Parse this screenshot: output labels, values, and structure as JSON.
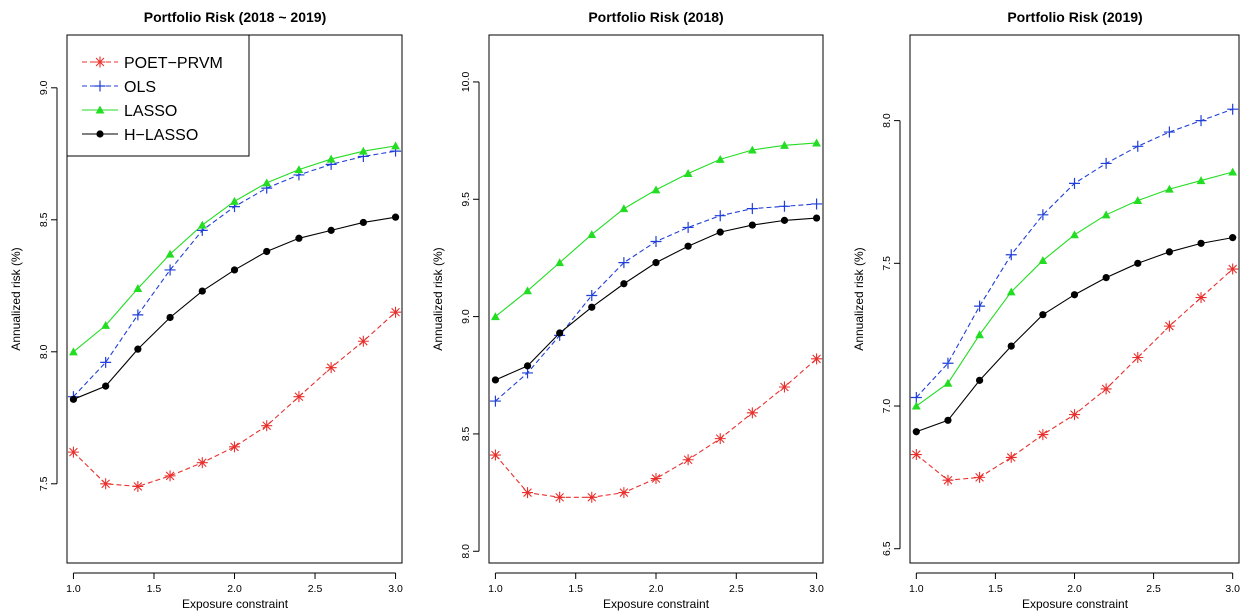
{
  "colors": {
    "POET-PRVM": "#e8302d",
    "OLS": "#1f3fd8",
    "LASSO": "#22dd22",
    "H-LASSO": "#000000"
  },
  "legend": {
    "position": "top-left of first panel",
    "entries": [
      "POET−PRVM",
      "OLS",
      "LASSO",
      "H−LASSO"
    ]
  },
  "chart_data": [
    {
      "type": "line",
      "title": "Portfolio Risk (2018 ~ 2019)",
      "xlabel": "Exposure constraint",
      "ylabel": "Annualized risk (%)",
      "xlim": [
        0.96,
        3.04
      ],
      "ylim": [
        7.2,
        9.2
      ],
      "xticks": [
        1.0,
        1.5,
        2.0,
        2.5,
        3.0
      ],
      "xtick_labels": [
        "1.0",
        "1.5",
        "2.0",
        "2.5",
        "3.0"
      ],
      "yticks": [
        7.5,
        8.0,
        8.5,
        9.0
      ],
      "ytick_labels": [
        "7.5",
        "8.0",
        "8.5",
        "9.0"
      ],
      "x": [
        1.0,
        1.2,
        1.4,
        1.6,
        1.8,
        2.0,
        2.2,
        2.4,
        2.6,
        2.8,
        3.0
      ],
      "series": [
        {
          "name": "POET−PRVM",
          "marker": "asterisk",
          "dash": true,
          "values": [
            7.62,
            7.5,
            7.49,
            7.53,
            7.58,
            7.64,
            7.72,
            7.83,
            7.94,
            8.04,
            8.15
          ]
        },
        {
          "name": "OLS",
          "marker": "plus",
          "dash": true,
          "values": [
            7.83,
            7.96,
            8.14,
            8.31,
            8.46,
            8.55,
            8.62,
            8.67,
            8.71,
            8.74,
            8.76
          ]
        },
        {
          "name": "LASSO",
          "marker": "triangle",
          "dash": false,
          "values": [
            8.0,
            8.1,
            8.24,
            8.37,
            8.48,
            8.57,
            8.64,
            8.69,
            8.73,
            8.76,
            8.78
          ]
        },
        {
          "name": "H−LASSO",
          "marker": "circle",
          "dash": false,
          "values": [
            7.82,
            7.87,
            8.01,
            8.13,
            8.23,
            8.31,
            8.38,
            8.43,
            8.46,
            8.49,
            8.51
          ]
        }
      ]
    },
    {
      "type": "line",
      "title": "Portfolio Risk (2018)",
      "xlabel": "Exposure constraint",
      "ylabel": "Annualized risk (%)",
      "xlim": [
        0.96,
        3.04
      ],
      "ylim": [
        7.95,
        10.2
      ],
      "xticks": [
        1.0,
        1.5,
        2.0,
        2.5,
        3.0
      ],
      "xtick_labels": [
        "1.0",
        "1.5",
        "2.0",
        "2.5",
        "3.0"
      ],
      "yticks": [
        8.0,
        8.5,
        9.0,
        9.5,
        10.0
      ],
      "ytick_labels": [
        "8.0",
        "8.5",
        "9.0",
        "9.5",
        "10.0"
      ],
      "x": [
        1.0,
        1.2,
        1.4,
        1.6,
        1.8,
        2.0,
        2.2,
        2.4,
        2.6,
        2.8,
        3.0
      ],
      "series": [
        {
          "name": "POET−PRVM",
          "marker": "asterisk",
          "dash": true,
          "values": [
            8.41,
            8.25,
            8.23,
            8.23,
            8.25,
            8.31,
            8.39,
            8.48,
            8.59,
            8.7,
            8.82
          ]
        },
        {
          "name": "OLS",
          "marker": "plus",
          "dash": true,
          "values": [
            8.64,
            8.76,
            8.92,
            9.09,
            9.23,
            9.32,
            9.38,
            9.43,
            9.46,
            9.47,
            9.48
          ]
        },
        {
          "name": "LASSO",
          "marker": "triangle",
          "dash": false,
          "values": [
            9.0,
            9.11,
            9.23,
            9.35,
            9.46,
            9.54,
            9.61,
            9.67,
            9.71,
            9.73,
            9.74
          ]
        },
        {
          "name": "H−LASSO",
          "marker": "circle",
          "dash": false,
          "values": [
            8.73,
            8.79,
            8.93,
            9.04,
            9.14,
            9.23,
            9.3,
            9.36,
            9.39,
            9.41,
            9.42
          ]
        }
      ]
    },
    {
      "type": "line",
      "title": "Portfolio Risk (2019)",
      "xlabel": "Exposure constraint",
      "ylabel": "Annualized risk (%)",
      "xlim": [
        0.96,
        3.04
      ],
      "ylim": [
        6.45,
        8.3
      ],
      "xticks": [
        1.0,
        1.5,
        2.0,
        2.5,
        3.0
      ],
      "xtick_labels": [
        "1.0",
        "1.5",
        "2.0",
        "2.5",
        "3.0"
      ],
      "yticks": [
        6.5,
        7.0,
        7.5,
        8.0
      ],
      "ytick_labels": [
        "6.5",
        "7.0",
        "7.5",
        "8.0"
      ],
      "x": [
        1.0,
        1.2,
        1.4,
        1.6,
        1.8,
        2.0,
        2.2,
        2.4,
        2.6,
        2.8,
        3.0
      ],
      "series": [
        {
          "name": "POET−PRVM",
          "marker": "asterisk",
          "dash": true,
          "values": [
            6.83,
            6.74,
            6.75,
            6.82,
            6.9,
            6.97,
            7.06,
            7.17,
            7.28,
            7.38,
            7.48
          ]
        },
        {
          "name": "OLS",
          "marker": "plus",
          "dash": true,
          "values": [
            7.03,
            7.15,
            7.35,
            7.53,
            7.67,
            7.78,
            7.85,
            7.91,
            7.96,
            8.0,
            8.04
          ]
        },
        {
          "name": "LASSO",
          "marker": "triangle",
          "dash": false,
          "values": [
            7.0,
            7.08,
            7.25,
            7.4,
            7.51,
            7.6,
            7.67,
            7.72,
            7.76,
            7.79,
            7.82
          ]
        },
        {
          "name": "H−LASSO",
          "marker": "circle",
          "dash": false,
          "values": [
            6.91,
            6.95,
            7.09,
            7.21,
            7.32,
            7.39,
            7.45,
            7.5,
            7.54,
            7.57,
            7.59
          ]
        }
      ]
    }
  ]
}
